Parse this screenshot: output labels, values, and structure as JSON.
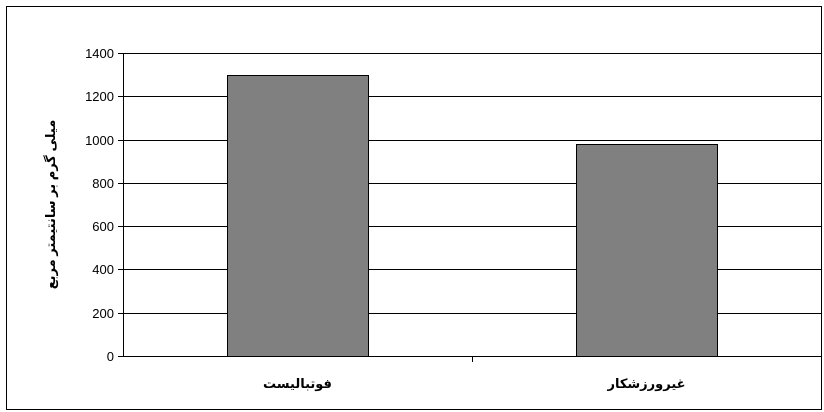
{
  "chart_data": {
    "type": "bar",
    "title": "",
    "xlabel": "",
    "ylabel": "میلی گرم بر سانتیمتر مربع",
    "categories": [
      "فوتبالیست",
      "غیرورزشکار"
    ],
    "values": [
      1300,
      980
    ],
    "ylim": [
      0,
      1400
    ],
    "yticks": [
      0,
      200,
      400,
      600,
      800,
      1000,
      1200,
      1400
    ],
    "grid": true,
    "legend": "none",
    "colors": {
      "bar_fill": "#808080",
      "bar_stroke": "#000000",
      "grid": "#000000",
      "axis": "#000000",
      "frame": "#000000"
    }
  }
}
